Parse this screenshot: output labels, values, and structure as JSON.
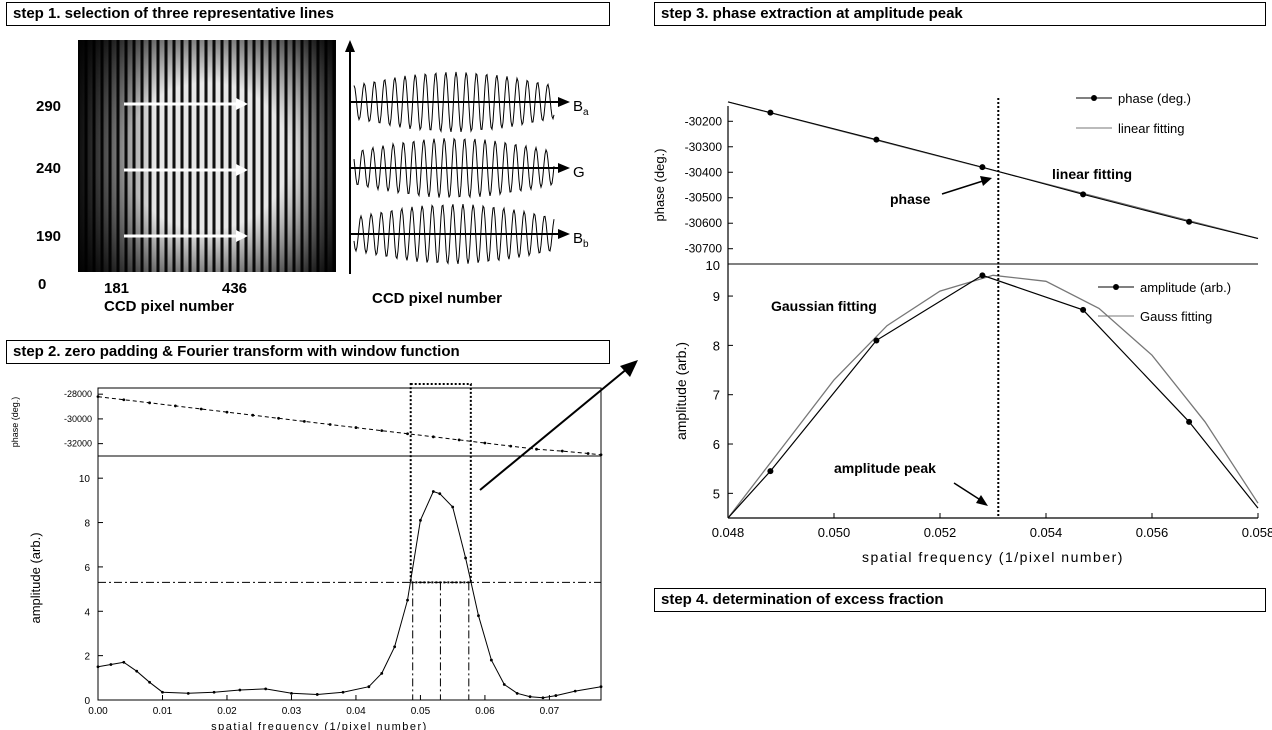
{
  "steps": {
    "s1": "step 1. selection of three representative lines",
    "s2": "step 2. zero padding & Fourier transform with window function",
    "s3": "step 3. phase extraction at amplitude peak",
    "s4": "step 4. determination of excess fraction"
  },
  "step1": {
    "row_labels": [
      "290",
      "240",
      "190"
    ],
    "origin_label": "0",
    "col_labels": [
      "181",
      "436"
    ],
    "xlabel_left": "CCD pixel number",
    "xlabel_right": "CCD pixel number",
    "line_labels": [
      "B",
      "G",
      "B"
    ],
    "line_subs": [
      "a",
      "",
      "b"
    ]
  },
  "chart_data": [
    {
      "id": "step2-phase",
      "type": "line",
      "ylabel": "phase (deg.)",
      "xlim": [
        0,
        0.078
      ],
      "yticks": [
        -28000,
        -30000,
        -32000
      ],
      "ylim": [
        -33000,
        -27500
      ],
      "series": [
        {
          "x": [
            0.0,
            0.004,
            0.008,
            0.012,
            0.016,
            0.02,
            0.024,
            0.028,
            0.032,
            0.036,
            0.04,
            0.044,
            0.048,
            0.052,
            0.056,
            0.06,
            0.064,
            0.068,
            0.072,
            0.076,
            0.078
          ],
          "y": [
            -28200,
            -28450,
            -28700,
            -28950,
            -29200,
            -29450,
            -29700,
            -29950,
            -30200,
            -30450,
            -30700,
            -30950,
            -31200,
            -31450,
            -31700,
            -31950,
            -32200,
            -32450,
            -32600,
            -32800,
            -32900
          ]
        }
      ]
    },
    {
      "id": "step2-amplitude",
      "type": "line",
      "xlabel": "spatial frequency (1/pixel number)",
      "ylabel": "amplitude (arb.)",
      "xlim": [
        0,
        0.078
      ],
      "xticks": [
        "0.00",
        "0.01",
        "0.02",
        "0.03",
        "0.04",
        "0.05",
        "0.06",
        "0.07"
      ],
      "xtick_values": [
        0,
        0.01,
        0.02,
        0.03,
        0.04,
        0.05,
        0.06,
        0.07
      ],
      "ylim": [
        0,
        11
      ],
      "yticks": [
        0,
        2,
        4,
        6,
        8,
        10
      ],
      "series": [
        {
          "x": [
            0.0,
            0.002,
            0.004,
            0.006,
            0.008,
            0.01,
            0.014,
            0.018,
            0.022,
            0.026,
            0.03,
            0.034,
            0.038,
            0.042,
            0.044,
            0.046,
            0.048,
            0.05,
            0.052,
            0.053,
            0.055,
            0.057,
            0.059,
            0.061,
            0.063,
            0.065,
            0.067,
            0.069,
            0.071,
            0.074,
            0.078
          ],
          "y": [
            1.5,
            1.6,
            1.7,
            1.3,
            0.8,
            0.35,
            0.3,
            0.35,
            0.45,
            0.5,
            0.3,
            0.25,
            0.35,
            0.6,
            1.2,
            2.4,
            4.5,
            8.1,
            9.4,
            9.3,
            8.7,
            6.4,
            3.8,
            1.8,
            0.7,
            0.3,
            0.15,
            0.1,
            0.2,
            0.4,
            0.6
          ]
        }
      ],
      "hline": 5.3,
      "vlines": [
        0.0488,
        0.0531,
        0.0575
      ]
    },
    {
      "id": "step3-phase",
      "type": "line",
      "ylabel": "phase (deg.)",
      "xlim": [
        0.048,
        0.058
      ],
      "ylim": [
        -30760,
        -30140
      ],
      "yticks": [
        -30200,
        -30300,
        -30400,
        -30500,
        -30600,
        -30700
      ],
      "series": [
        {
          "name": "phase (deg.)",
          "x": [
            0.0488,
            0.0508,
            0.0528,
            0.0547,
            0.0567
          ],
          "y": [
            -30166,
            -30272,
            -30380,
            -30487,
            -30594
          ]
        },
        {
          "name": "linear fitting",
          "x": [
            0.048,
            0.058
          ],
          "y": [
            -30124,
            -30660
          ]
        }
      ],
      "annotations": [
        "phase",
        "linear fitting"
      ],
      "vline": 0.0531
    },
    {
      "id": "step3-amplitude",
      "type": "line",
      "xlabel": "spatial frequency (1/pixel number)",
      "ylabel": "amplitude (arb.)",
      "xlim": [
        0.048,
        0.058
      ],
      "xticks": [
        "0.048",
        "0.050",
        "0.052",
        "0.054",
        "0.056",
        "0.058"
      ],
      "xtick_values": [
        0.048,
        0.05,
        0.052,
        0.054,
        0.056,
        0.058
      ],
      "ylim": [
        4.5,
        9.65
      ],
      "yticks": [
        5,
        6,
        7,
        8,
        9,
        10
      ],
      "series": [
        {
          "name": "amplitude (arb.)",
          "x": [
            0.048,
            0.0488,
            0.0508,
            0.0528,
            0.0547,
            0.0567,
            0.058
          ],
          "y": [
            4.3,
            5.45,
            8.1,
            9.42,
            8.72,
            6.45,
            4.7
          ]
        },
        {
          "name": "Gauss fitting",
          "x": [
            0.048,
            0.049,
            0.05,
            0.051,
            0.052,
            0.053,
            0.054,
            0.055,
            0.056,
            0.057,
            0.058
          ],
          "y": [
            4.35,
            5.9,
            7.3,
            8.4,
            9.1,
            9.42,
            9.3,
            8.75,
            7.8,
            6.45,
            4.8
          ]
        }
      ],
      "annotations": [
        "Gaussian fitting",
        "amplitude peak"
      ],
      "vline": 0.0531
    }
  ]
}
